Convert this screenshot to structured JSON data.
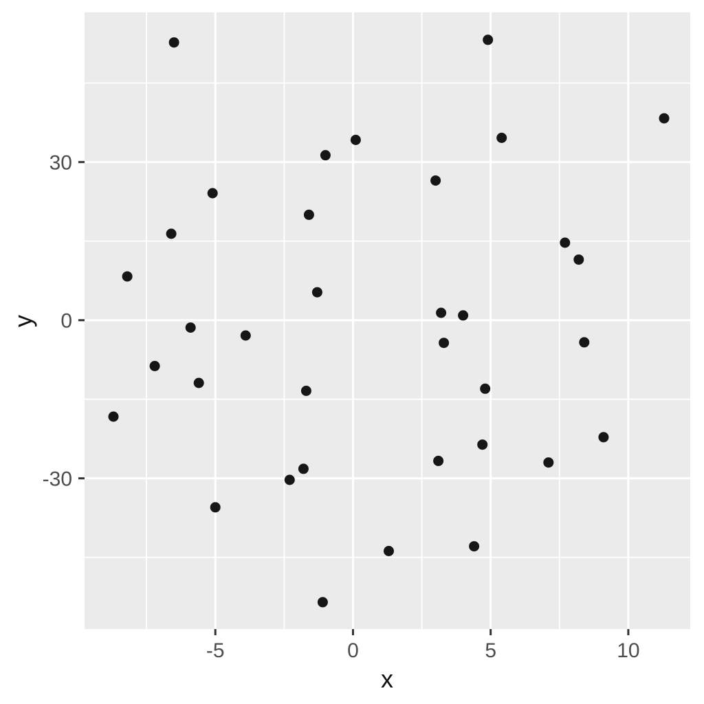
{
  "chart_data": {
    "type": "scatter",
    "title": "",
    "xlabel": "x",
    "ylabel": "y",
    "xlim": [
      -9.75,
      12.25
    ],
    "ylim": [
      -58.6,
      58.4
    ],
    "grid": "major-and-minor",
    "legend_position": "none",
    "theme": "ggplot2-theme-gray",
    "colors": {
      "outer_background": "#ffffff",
      "panel_background": "#ebebeb",
      "gridline": "#ffffff",
      "point": "#161616",
      "tick_mark": "#333333",
      "tick_text": "#4d4d4d",
      "axis_title": "#111111"
    },
    "x_ticks": [
      {
        "value": -5,
        "label": "-5"
      },
      {
        "value": 0,
        "label": "0"
      },
      {
        "value": 5,
        "label": "5"
      },
      {
        "value": 10,
        "label": "10"
      }
    ],
    "y_ticks": [
      {
        "value": 30,
        "label": "30"
      },
      {
        "value": 0,
        "label": "0"
      },
      {
        "value": -30,
        "label": "-30"
      }
    ],
    "x_minor_ticks": [
      -7.5,
      -2.5,
      2.5,
      7.5
    ],
    "y_minor_ticks": [
      45,
      15,
      -15,
      -45
    ],
    "points": [
      [
        -6.5,
        52.7
      ],
      [
        4.9,
        53.2
      ],
      [
        11.3,
        38.3
      ],
      [
        0.1,
        34.2
      ],
      [
        5.4,
        34.6
      ],
      [
        -1.0,
        31.3
      ],
      [
        3.0,
        26.5
      ],
      [
        -5.1,
        24.1
      ],
      [
        -1.6,
        20.0
      ],
      [
        -6.6,
        16.4
      ],
      [
        7.7,
        14.7
      ],
      [
        8.2,
        11.5
      ],
      [
        -8.2,
        8.3
      ],
      [
        -1.3,
        5.3
      ],
      [
        3.2,
        1.4
      ],
      [
        4.0,
        0.9
      ],
      [
        -5.9,
        -1.4
      ],
      [
        -3.9,
        -2.9
      ],
      [
        8.4,
        -4.2
      ],
      [
        3.3,
        -4.3
      ],
      [
        -7.2,
        -8.7
      ],
      [
        -5.6,
        -11.9
      ],
      [
        -1.7,
        -13.4
      ],
      [
        4.8,
        -13.0
      ],
      [
        -8.7,
        -18.3
      ],
      [
        9.1,
        -22.2
      ],
      [
        4.7,
        -23.6
      ],
      [
        3.1,
        -26.7
      ],
      [
        7.1,
        -27.0
      ],
      [
        -1.8,
        -28.2
      ],
      [
        -2.3,
        -30.3
      ],
      [
        -5.0,
        -35.5
      ],
      [
        4.4,
        -42.9
      ],
      [
        1.3,
        -43.8
      ],
      [
        -1.1,
        -53.5
      ]
    ]
  }
}
